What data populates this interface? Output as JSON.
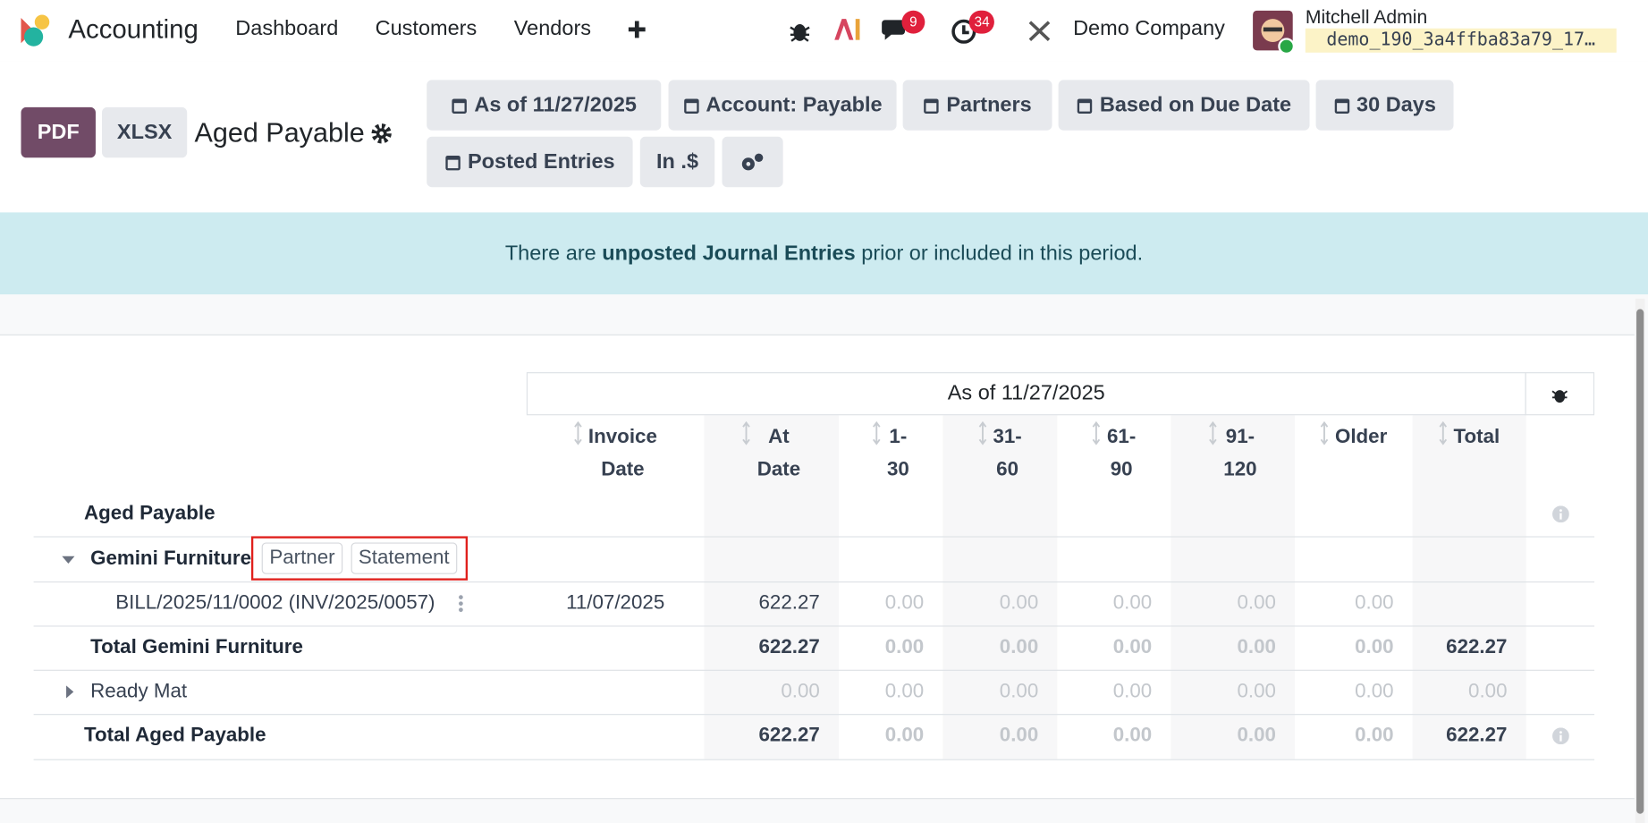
{
  "navbar": {
    "app": "Accounting",
    "menu": [
      "Dashboard",
      "Customers",
      "Vendors"
    ],
    "messages_badge": "9",
    "activities_badge": "34",
    "company": "Demo Company",
    "user": "Mitchell Admin",
    "database": "demo_190_3a4ffba83a79_17…"
  },
  "control_panel": {
    "buttons": [
      "PDF",
      "XLSX"
    ],
    "title": "Aged Payable",
    "filters": [
      "As of 11/27/2025",
      "Account: Payable",
      "Partners",
      "Based on Due Date",
      "30 Days",
      "Posted Entries",
      "In .$"
    ]
  },
  "alert": {
    "before": "There are ",
    "link": "unposted Journal Entries",
    "after": " prior or included in this period."
  },
  "report": {
    "period": "As of 11/27/2025",
    "columns": [
      "Invoice Date",
      "At Date",
      "1-30",
      "31-60",
      "61-90",
      "91-120",
      "Older",
      "Total"
    ],
    "rows": [
      {
        "label": "Aged Payable"
      },
      {
        "label": "Gemini Furniture",
        "buttons": [
          "Partner",
          "Statement"
        ]
      },
      {
        "label": "BILL/2025/11/0002 (INV/2025/0057)",
        "cells": [
          "11/07/2025",
          "622.27",
          "0.00",
          "0.00",
          "0.00",
          "0.00",
          "0.00",
          null
        ]
      },
      {
        "label": "Total Gemini Furniture",
        "cells": [
          null,
          "622.27",
          "0.00",
          "0.00",
          "0.00",
          "0.00",
          "0.00",
          "622.27"
        ]
      },
      {
        "label": "Ready Mat",
        "cells": [
          null,
          "0.00",
          "0.00",
          "0.00",
          "0.00",
          "0.00",
          "0.00",
          "0.00"
        ]
      },
      {
        "label": "Total Aged Payable",
        "cells": [
          null,
          "622.27",
          "0.00",
          "0.00",
          "0.00",
          "0.00",
          "0.00",
          "622.27"
        ]
      }
    ]
  }
}
